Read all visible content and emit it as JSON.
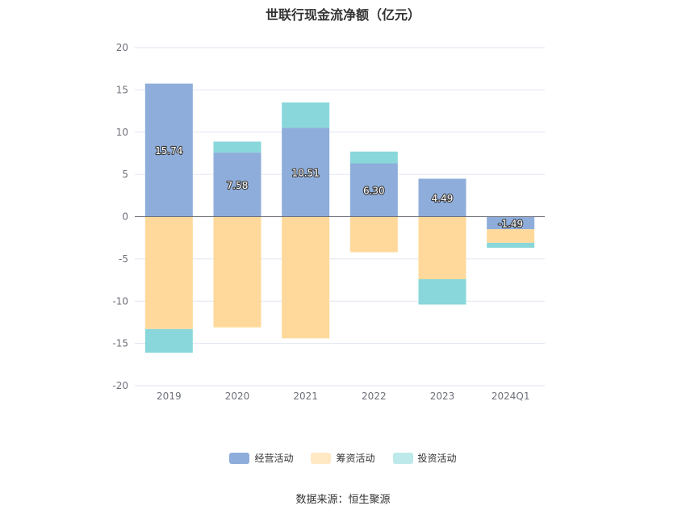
{
  "chart_data": {
    "type": "bar",
    "stacked": true,
    "title": "世联行现金流净额（亿元）",
    "categories": [
      "2019",
      "2020",
      "2021",
      "2022",
      "2023",
      "2024Q1"
    ],
    "ylim": [
      -20,
      20
    ],
    "yticks": [
      20,
      15,
      10,
      5,
      0,
      -5,
      -10,
      -15,
      -20
    ],
    "grid": true,
    "legend_position": "bottom",
    "series": [
      {
        "name": "经营活动",
        "color": "#8eaddb",
        "values": [
          15.74,
          7.58,
          10.51,
          6.3,
          4.49,
          -1.49
        ],
        "labels": [
          "15.74",
          "7.58",
          "10.51",
          "6.30",
          "4.49",
          "-1.49"
        ]
      },
      {
        "name": "筹资活动",
        "color": "#ffd99b",
        "values": [
          -13.3,
          -13.1,
          -14.4,
          -4.2,
          -7.4,
          -1.6
        ]
      },
      {
        "name": "投资活动",
        "color": "#89d7da",
        "values": [
          -2.8,
          1.3,
          3.0,
          1.4,
          -3.0,
          -0.6
        ]
      }
    ]
  },
  "legend": {
    "items": [
      {
        "label": "经营活动",
        "color": "#8eaddb"
      },
      {
        "label": "筹资活动",
        "color": "#ffe8c4"
      },
      {
        "label": "投资活动",
        "color": "#bde9ea"
      }
    ]
  },
  "source": "数据来源：恒生聚源"
}
